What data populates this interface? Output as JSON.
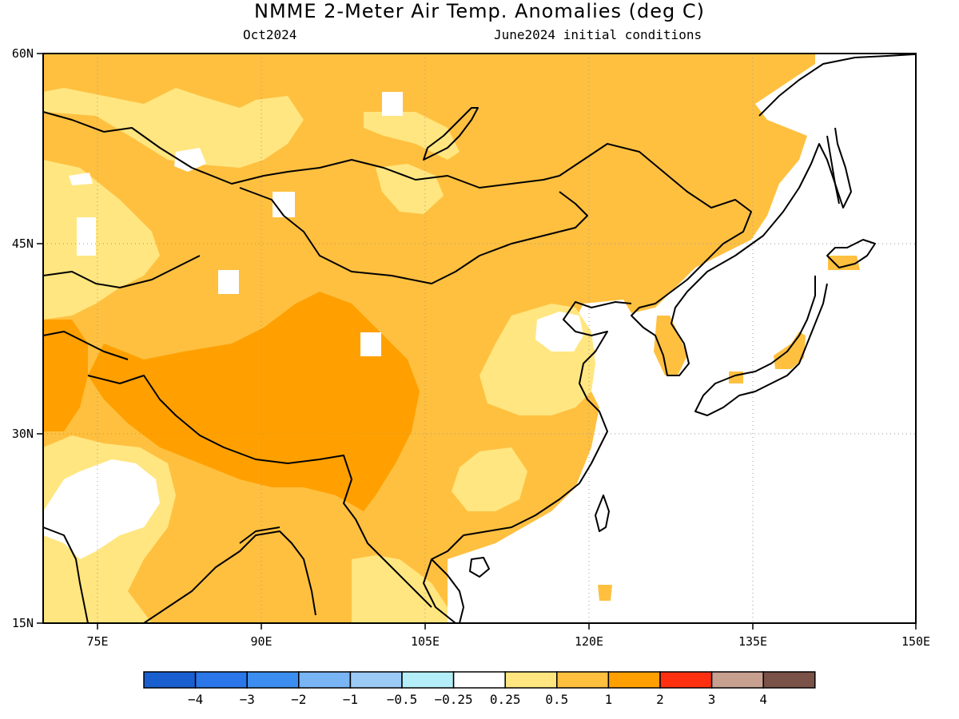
{
  "title": "NMME 2-Meter Air Temp. Anomalies (deg C)",
  "subtitle_left": "Oct2024",
  "subtitle_right": "June2024 initial conditions",
  "map": {
    "lon_range": [
      70,
      150
    ],
    "lat_range": [
      15,
      60
    ],
    "lon_ticks": [
      "75E",
      "90E",
      "105E",
      "120E",
      "135E",
      "150E"
    ],
    "lat_ticks": [
      "60N",
      "45N",
      "30N",
      "15N"
    ],
    "gridlines": "dotted",
    "coastline_color": "#000000"
  },
  "colorbar": {
    "colors": [
      "#1a5fd0",
      "#2b76e8",
      "#3b8ef0",
      "#79b4f5",
      "#9ccaf7",
      "#b4eef8",
      "#ffffff",
      "#ffe680",
      "#ffc040",
      "#ffa000",
      "#ff3010",
      "#c8a090",
      "#7a5248"
    ],
    "labels": [
      "-4",
      "-3",
      "-2",
      "-1",
      "-0.5",
      "-0.25",
      "0.25",
      "0.5",
      "1",
      "2",
      "3",
      "4"
    ]
  },
  "palette": {
    "white": "#ffffff",
    "light_yellow": "#ffe680",
    "light_orange": "#ffc040",
    "orange": "#ffa000"
  }
}
